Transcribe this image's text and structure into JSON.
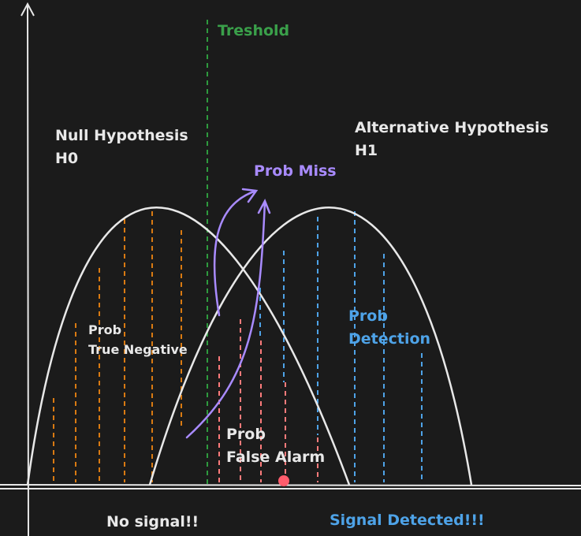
{
  "labels": {
    "threshold": "Treshold",
    "null_hypothesis": [
      "Null Hypothesis",
      "H0"
    ],
    "alternative_hypothesis": [
      "Alternative Hypothesis",
      "H1"
    ],
    "prob_miss": "Prob Miss",
    "prob_true_negative": [
      "Prob",
      "True Negative"
    ],
    "prob_detection": [
      "Prob",
      "Detection"
    ],
    "prob_false_alarm": [
      "Prob",
      "False Alarm"
    ],
    "no_signal": "No signal!!",
    "signal_detected": "Signal Detected!!!"
  }
}
